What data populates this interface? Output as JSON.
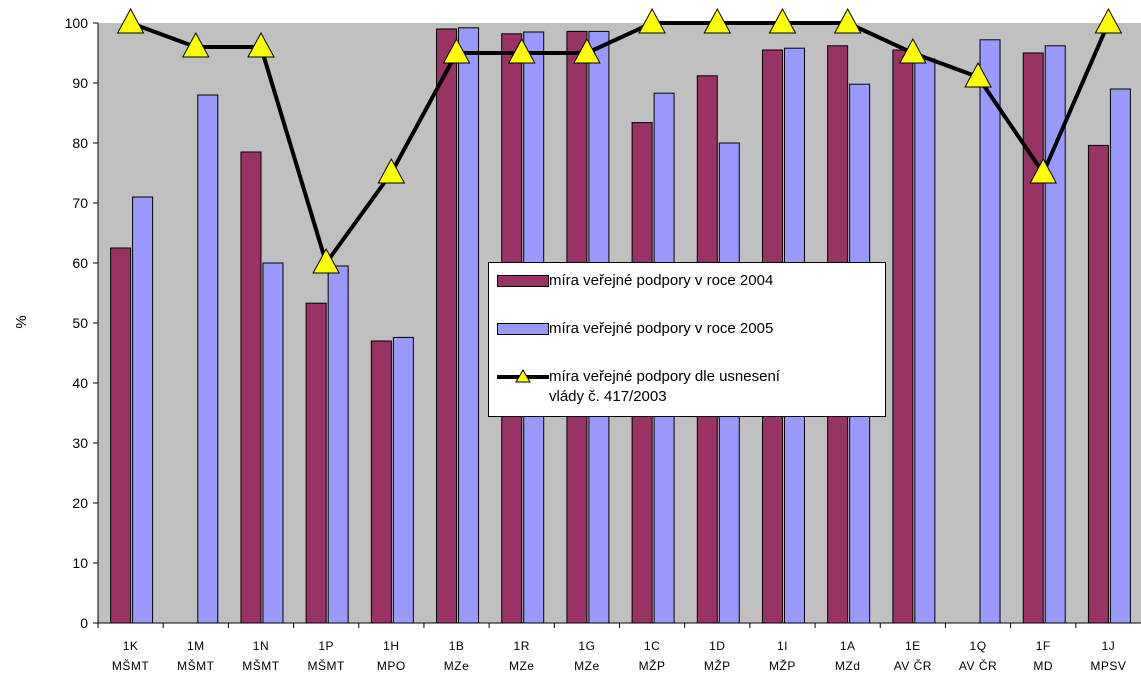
{
  "chart_data": {
    "type": "bar",
    "ylabel": "%",
    "ylim": [
      0,
      100
    ],
    "yticks": [
      "0",
      "10",
      "20",
      "30",
      "40",
      "50",
      "60",
      "70",
      "80",
      "90",
      "100"
    ],
    "grid": false,
    "legend_placement": "center",
    "categories": [
      {
        "line1": "1K",
        "line2": "MŠMT"
      },
      {
        "line1": "1M",
        "line2": "MŠMT"
      },
      {
        "line1": "1N",
        "line2": "MŠMT"
      },
      {
        "line1": "1P",
        "line2": "MŠMT"
      },
      {
        "line1": "1H",
        "line2": "MPO"
      },
      {
        "line1": "1B",
        "line2": "MZe"
      },
      {
        "line1": "1R",
        "line2": "MZe"
      },
      {
        "line1": "1G",
        "line2": "MZe"
      },
      {
        "line1": "1C",
        "line2": "MŽP"
      },
      {
        "line1": "1D",
        "line2": "MŽP"
      },
      {
        "line1": "1I",
        "line2": "MŽP"
      },
      {
        "line1": "1A",
        "line2": "MZd"
      },
      {
        "line1": "1E",
        "line2": "AV ČR"
      },
      {
        "line1": "1Q",
        "line2": "AV ČR"
      },
      {
        "line1": "1F",
        "line2": "MD"
      },
      {
        "line1": "1J",
        "line2": "MPSV"
      }
    ],
    "series": [
      {
        "name": "míra veřejné podpory v roce 2004",
        "kind": "bar",
        "color": "#993366",
        "values": [
          62.5,
          null,
          78.5,
          53.3,
          47.0,
          99.0,
          98.2,
          98.6,
          83.4,
          91.2,
          95.5,
          96.2,
          95.5,
          null,
          95.0,
          79.6
        ]
      },
      {
        "name": "míra veřejné podpory v roce 2005",
        "kind": "bar",
        "color": "#9999ff",
        "values": [
          71.0,
          88.0,
          60.0,
          59.5,
          47.6,
          99.2,
          98.5,
          98.6,
          88.3,
          80.0,
          95.8,
          89.8,
          94.0,
          97.2,
          96.2,
          89.0
        ]
      },
      {
        "name": "míra veřejné podpory dle usnesení vlády č. 417/2003",
        "kind": "line",
        "color": "#000000",
        "marker_color": "#ffff00",
        "values": [
          100,
          96,
          96,
          60,
          75,
          95,
          95,
          95,
          100,
          100,
          100,
          100,
          95,
          91,
          75,
          100
        ]
      }
    ],
    "legend": [
      {
        "line1": "míra veřejné podpory v roce 2004",
        "line2": ""
      },
      {
        "line1": "míra veřejné podpory v roce 2005",
        "line2": ""
      },
      {
        "line1": "míra veřejné podpory dle usnesení",
        "line2": "vlády č. 417/2003"
      }
    ],
    "colors": {
      "plot_background": "#c0c0c0",
      "bar_2004": "#993366",
      "bar_2005": "#9999ff",
      "line": "#000000",
      "marker": "#ffff00"
    }
  }
}
